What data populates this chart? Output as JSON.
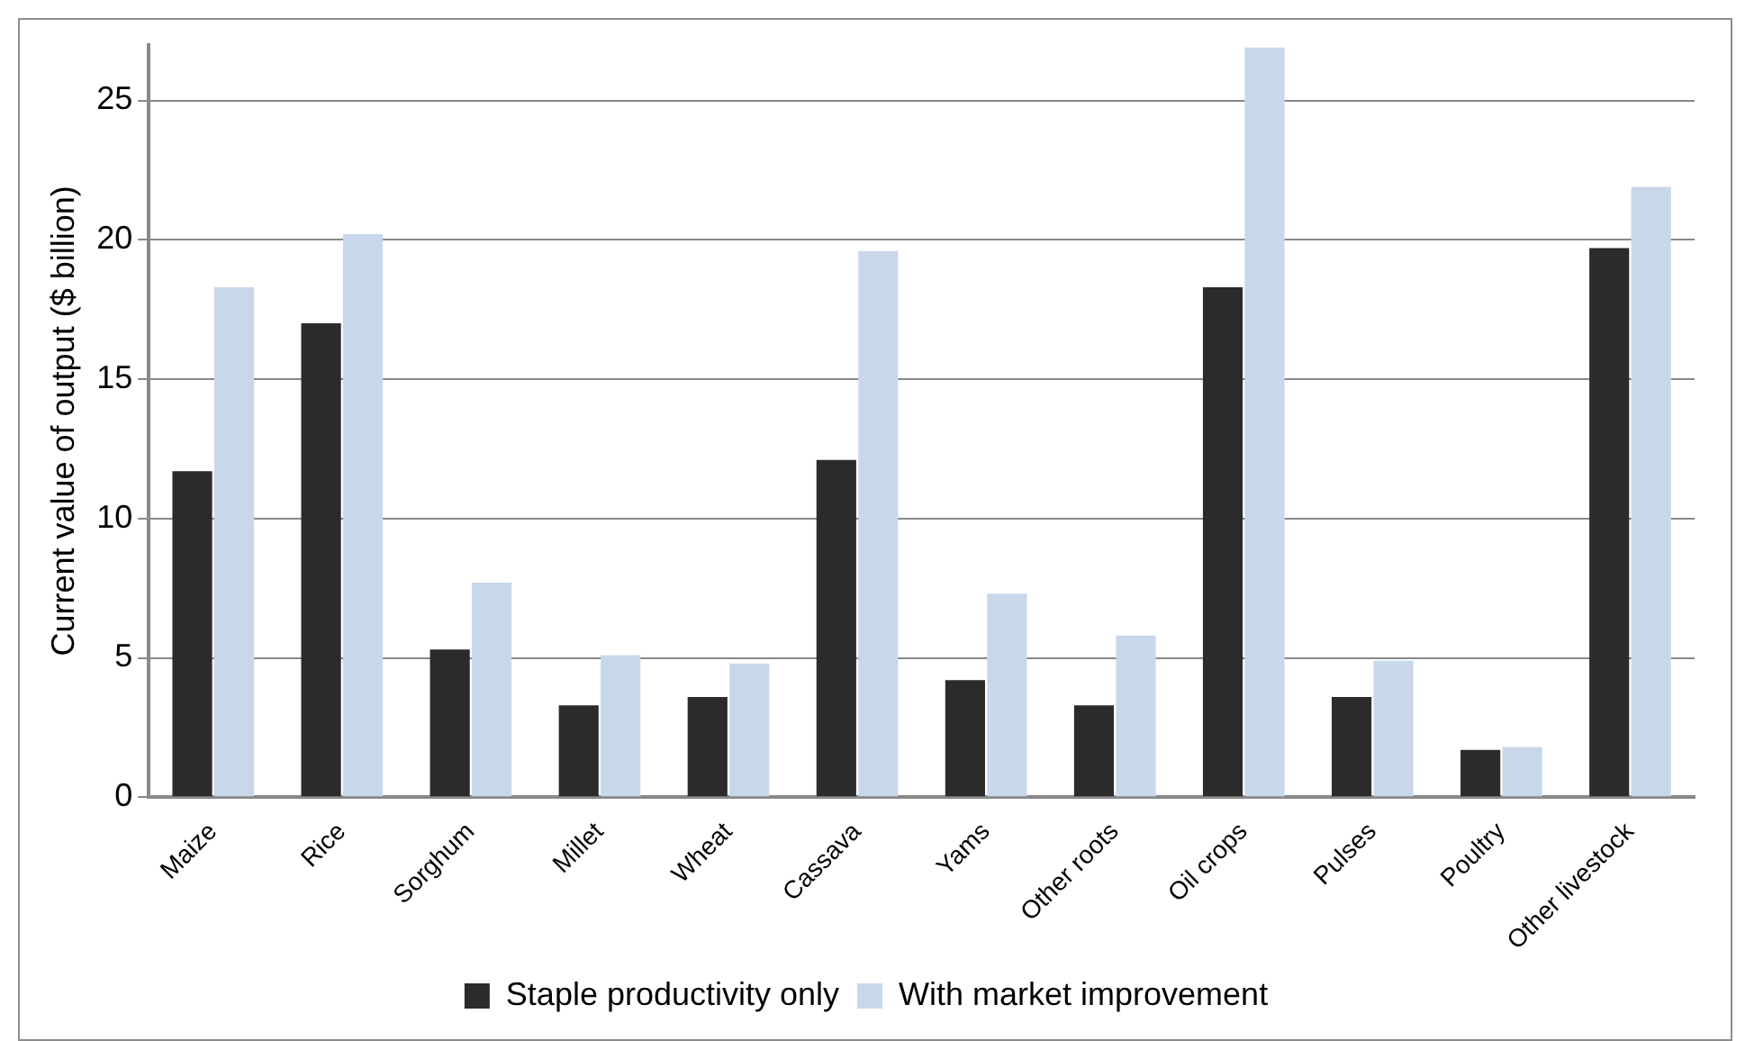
{
  "chart_data": {
    "type": "bar",
    "ylabel": "Current value of output ($ billion)",
    "categories": [
      "Maize",
      "Rice",
      "Sorghum",
      "Millet",
      "Wheat",
      "Cassava",
      "Yams",
      "Other roots",
      "Oil crops",
      "Pulses",
      "Poultry",
      "Other livestock"
    ],
    "series": [
      {
        "name": "Staple productivity only",
        "color": "#2b2b2b",
        "values": [
          11.7,
          17.0,
          5.3,
          3.3,
          3.6,
          12.1,
          4.2,
          3.3,
          18.3,
          3.6,
          1.7,
          19.7
        ]
      },
      {
        "name": "With market improvement",
        "color": "#c9d7ea",
        "values": [
          18.3,
          20.2,
          7.7,
          5.1,
          4.8,
          19.6,
          7.3,
          5.8,
          26.9,
          4.9,
          1.8,
          21.9
        ]
      }
    ],
    "ylim": [
      0,
      27
    ],
    "yticks": [
      0,
      5,
      10,
      15,
      20,
      25
    ],
    "grid": "y",
    "legend": "bottom"
  }
}
